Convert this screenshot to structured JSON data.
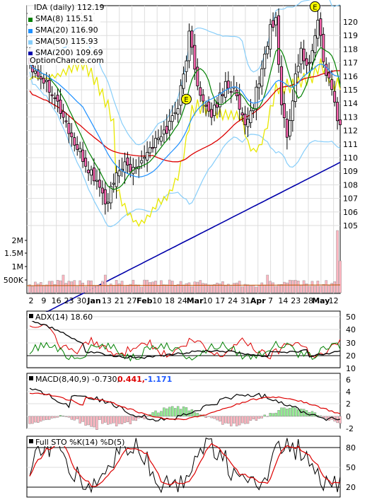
{
  "colors": {
    "sma8": "#008000",
    "sma20": "#1e90ff",
    "sma50": "#e8e800",
    "sma200": "#0000aa",
    "bollinger": "#87cefa",
    "ema_red": "#dd0000",
    "up_candle": "#ffffff",
    "down_candle": "#ff69b4",
    "volume_bar": "#ffb6c1",
    "earnings_marker": "#ffff00"
  },
  "price_panel": {
    "legend": [
      {
        "key": "title",
        "label": "IDA (daily) 112.19",
        "color": "#000000"
      },
      {
        "key": "sma8",
        "label": "SMA(8) 115.51",
        "color": "#008000"
      },
      {
        "key": "sma20",
        "label": "SMA(20) 116.90",
        "color": "#1e90ff"
      },
      {
        "key": "sma50",
        "label": "SMA(50) 115.93",
        "color": "#87cefa"
      },
      {
        "key": "sma200",
        "label": "SMA(200) 109.69",
        "color": "#0000aa"
      }
    ],
    "watermark": "OptionChance.com",
    "earnings_label": "E",
    "y_ticks": [
      "120",
      "119",
      "118",
      "117",
      "116",
      "115",
      "114",
      "113",
      "112",
      "111",
      "110",
      "109",
      "108",
      "107",
      "106",
      "105"
    ],
    "volume_ticks": [
      "2M",
      "1.5M",
      "1M",
      "500K"
    ],
    "x_labels": [
      {
        "label": "2",
        "bold": false
      },
      {
        "label": "9",
        "bold": false
      },
      {
        "label": "16",
        "bold": false
      },
      {
        "label": "23",
        "bold": false
      },
      {
        "label": "30",
        "bold": false
      },
      {
        "label": "Jan",
        "bold": true
      },
      {
        "label": "13",
        "bold": false
      },
      {
        "label": "21",
        "bold": false
      },
      {
        "label": "27",
        "bold": false
      },
      {
        "label": "Feb",
        "bold": true
      },
      {
        "label": "10",
        "bold": false
      },
      {
        "label": "18",
        "bold": false
      },
      {
        "label": "24",
        "bold": false
      },
      {
        "label": "Mar",
        "bold": true
      },
      {
        "label": "10",
        "bold": false
      },
      {
        "label": "17",
        "bold": false
      },
      {
        "label": "24",
        "bold": false
      },
      {
        "label": "31",
        "bold": false
      },
      {
        "label": "Apr",
        "bold": true
      },
      {
        "label": "7",
        "bold": false
      },
      {
        "label": "14",
        "bold": false
      },
      {
        "label": "23",
        "bold": false
      },
      {
        "label": "28",
        "bold": false
      },
      {
        "label": "May",
        "bold": true
      },
      {
        "label": "12",
        "bold": false
      }
    ]
  },
  "adx_panel": {
    "title": "ADX(14) 18.60",
    "ticks": [
      "50",
      "40",
      "30",
      "20",
      "10"
    ]
  },
  "macd_panel": {
    "title": "MACD(8,40,9) -0.730,",
    "value1": "0.441,",
    "value2": "-1.171",
    "ticks": [
      "6",
      "4",
      "2",
      "0",
      "-2"
    ]
  },
  "sto_panel": {
    "title": "Full STO %K(14) %D(5)",
    "ticks": [
      "80",
      "50",
      "20"
    ]
  },
  "chart_data": [
    {
      "type": "candlestick",
      "title": "IDA (daily) 112.19",
      "ylim": [
        104.5,
        121
      ],
      "y_ticks": [
        120,
        119,
        118,
        117,
        116,
        115,
        114,
        113,
        112,
        111,
        110,
        109,
        108,
        107,
        106,
        105
      ],
      "x_labels": [
        "2",
        "9",
        "16",
        "23",
        "30",
        "Jan",
        "13",
        "21",
        "27",
        "Feb",
        "10",
        "18",
        "24",
        "Mar",
        "10",
        "17",
        "24",
        "31",
        "Apr",
        "7",
        "14",
        "23",
        "28",
        "May",
        "12"
      ],
      "close_anchors": [
        [
          0,
          117.0
        ],
        [
          4,
          116.0
        ],
        [
          8,
          115.0
        ],
        [
          12,
          113.0
        ],
        [
          16,
          111.0
        ],
        [
          20,
          109.5
        ],
        [
          23,
          108.5
        ],
        [
          25,
          108.0
        ],
        [
          27,
          106.5
        ],
        [
          30,
          108.0
        ],
        [
          33,
          109.5
        ],
        [
          36,
          109.0
        ],
        [
          40,
          110.0
        ],
        [
          44,
          111.0
        ],
        [
          47,
          111.5
        ],
        [
          50,
          112.5
        ],
        [
          53,
          114.0
        ],
        [
          55,
          116.0
        ],
        [
          57,
          119.0
        ],
        [
          58,
          118.0
        ],
        [
          61,
          114.5
        ],
        [
          64,
          113.0
        ],
        [
          67,
          114.0
        ],
        [
          70,
          115.5
        ],
        [
          73,
          115.0
        ],
        [
          75,
          113.5
        ],
        [
          77,
          112.0
        ],
        [
          80,
          114.0
        ],
        [
          83,
          116.5
        ],
        [
          86,
          119.5
        ],
        [
          88,
          120.0
        ],
        [
          90,
          114.0
        ],
        [
          92,
          111.5
        ],
        [
          95,
          116.0
        ],
        [
          97,
          118.0
        ],
        [
          99,
          116.5
        ],
        [
          101,
          117.5
        ],
        [
          103,
          120.5
        ],
        [
          105,
          117.0
        ],
        [
          107,
          116.0
        ],
        [
          109,
          114.0
        ],
        [
          111,
          112.2
        ]
      ],
      "series": [
        {
          "name": "SMA(8)",
          "value": 115.51
        },
        {
          "name": "SMA(20)",
          "value": 116.9
        },
        {
          "name": "SMA(50)",
          "value": 115.93
        },
        {
          "name": "SMA(200)",
          "value": 109.69
        }
      ],
      "earnings_markers": [
        "E",
        "E"
      ],
      "volume_ticks": [
        "2M",
        "1.5M",
        "1M",
        "500K"
      ]
    },
    {
      "type": "line",
      "title": "ADX(14) 18.60",
      "ylim": [
        5,
        55
      ],
      "y_ticks": [
        50,
        40,
        30,
        20,
        10
      ],
      "series": [
        {
          "name": "ADX(14)",
          "value": 18.6
        }
      ]
    },
    {
      "type": "line",
      "title": "MACD(8,40,9)",
      "ylim": [
        -3,
        7
      ],
      "y_ticks": [
        6,
        4,
        2,
        0,
        -2
      ],
      "series": [
        {
          "name": "MACD",
          "value": -0.73
        },
        {
          "name": "signal",
          "value": 0.441
        },
        {
          "name": "histogram",
          "value": -1.171
        }
      ]
    },
    {
      "type": "line",
      "title": "Full STO %K(14) %D(5)",
      "ylim": [
        0,
        100
      ],
      "y_ticks": [
        80,
        50,
        20
      ]
    }
  ]
}
